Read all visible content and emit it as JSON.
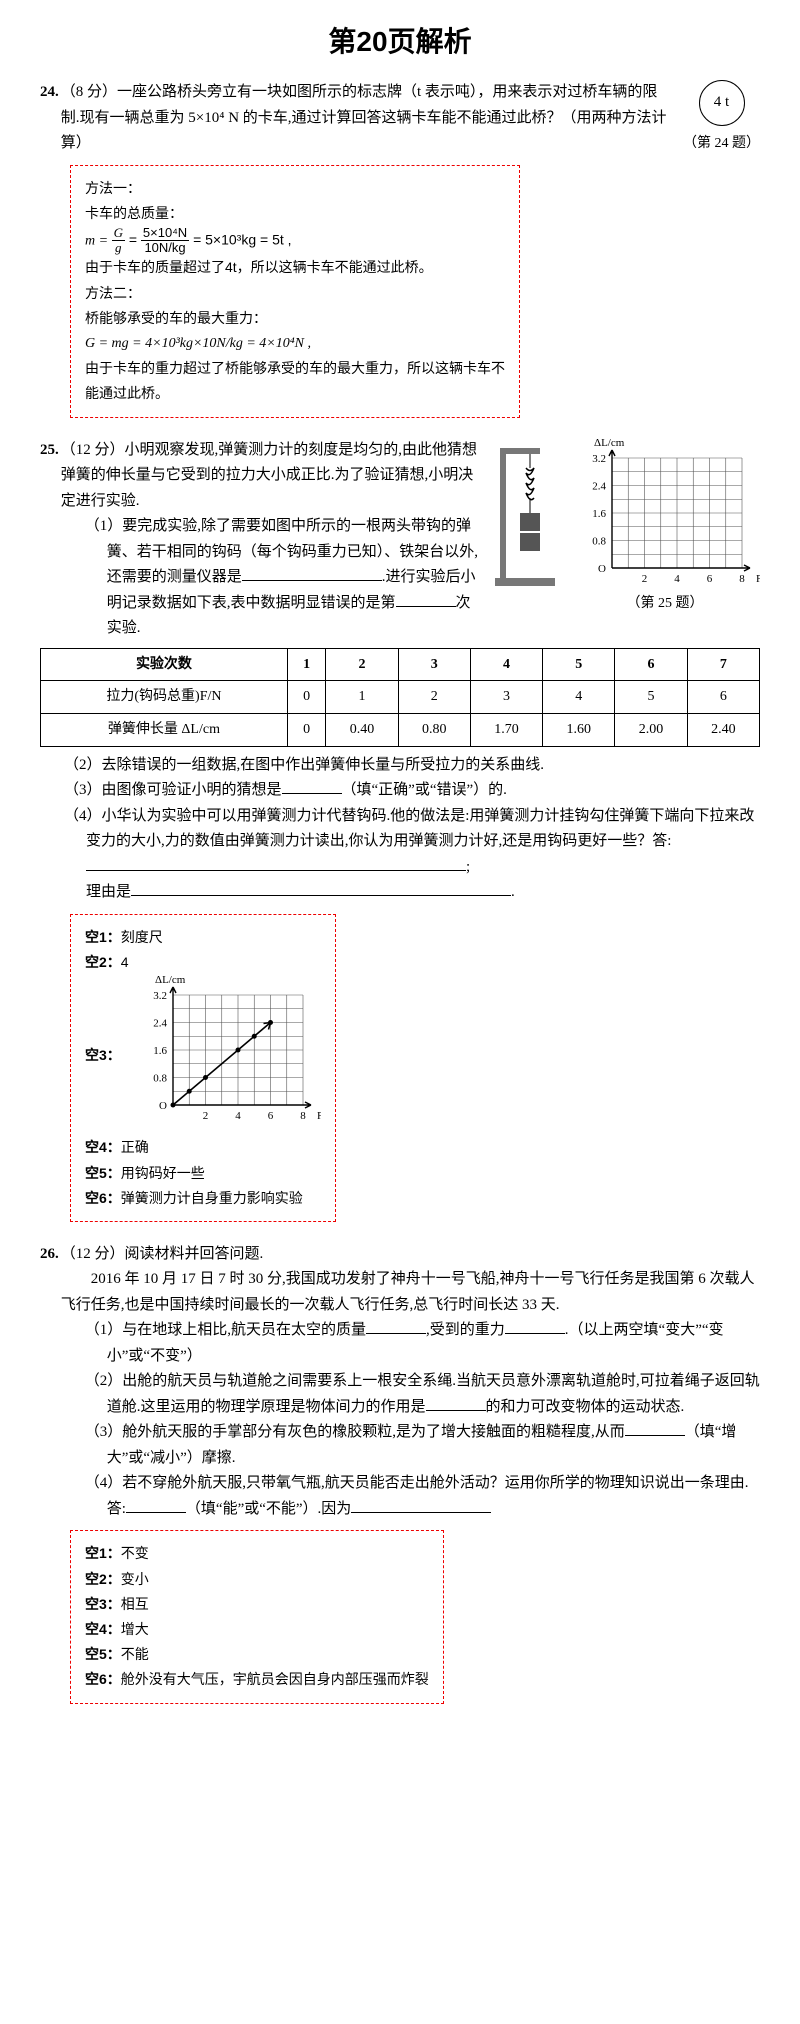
{
  "page_title": "第20页解析",
  "q24": {
    "number": "24.",
    "points": "（8 分）",
    "text": "一座公路桥头旁立有一块如图所示的标志牌（t 表示吨），用来表示对过桥车辆的限制.现有一辆总重为 5×10⁴ N 的卡车,通过计算回答这辆卡车能不能通过此桥？（用两种方法计算）",
    "sign_value": "4 t",
    "fig_caption": "（第 24 题）",
    "answer": {
      "m1_title": "方法一：",
      "m1_l1": "卡车的总质量：",
      "m1_formula_prefix": "m = ",
      "m1_frac_num": "G",
      "m1_frac_den": "g",
      "m1_eq": " = ",
      "m1_frac2_num": "5×10⁴N",
      "m1_frac2_den": "10N/kg",
      "m1_rest": " = 5×10³kg = 5t ,",
      "m1_l3": "由于卡车的质量超过了4t，所以这辆卡车不能通过此桥。",
      "m2_title": "方法二：",
      "m2_l1": "桥能够承受的车的最大重力：",
      "m2_formula": "G = mg = 4×10³kg×10N/kg = 4×10⁴N ,",
      "m2_l3": "由于卡车的重力超过了桥能够承受的车的最大重力，所以这辆卡车不能通过此桥。"
    }
  },
  "q25": {
    "number": "25.",
    "points": "（12 分）",
    "intro": "小明观察发现,弹簧测力计的刻度是均匀的,由此他猜想弹簧的伸长量与它受到的拉力大小成正比.为了验证猜想,小明决定进行实验.",
    "sub1": "（1）要完成实验,除了需要如图中所示的一根两头带钩的弹簧、若干相同的钩码（每个钩码重力已知）、铁架台以外,还需要的测量仪器是",
    "sub1_after": ".进行实验后小明记录数据如下表,表中数据明显错误的是第",
    "sub1_tail": "次实验.",
    "fig_caption": "（第 25 题）",
    "chart": {
      "y_label": "ΔL/cm",
      "x_label": "F/N",
      "x_ticks": [
        "2",
        "4",
        "6",
        "8"
      ],
      "y_ticks": [
        "0.8",
        "1.6",
        "2.4",
        "3.2"
      ],
      "origin": "O",
      "grid_color": "#555",
      "axis_color": "#000",
      "line_color": "#000",
      "bg": "#fff"
    },
    "table": {
      "headers": [
        "实验次数",
        "1",
        "2",
        "3",
        "4",
        "5",
        "6",
        "7"
      ],
      "row1_label": "拉力(钩码总重)F/N",
      "row1": [
        "0",
        "1",
        "2",
        "3",
        "4",
        "5",
        "6"
      ],
      "row2_label": "弹簧伸长量 ΔL/cm",
      "row2": [
        "0",
        "0.40",
        "0.80",
        "1.70",
        "1.60",
        "2.00",
        "2.40"
      ]
    },
    "sub2": "（2）去除错误的一组数据,在图中作出弹簧伸长量与所受拉力的关系曲线.",
    "sub3_a": "（3）由图像可验证小明的猜想是",
    "sub3_b": "（填“正确”或“错误”）的.",
    "sub4_a": "（4）小华认为实验中可以用弹簧测力计代替钩码.他的做法是:用弹簧测力计挂钩勾住弹簧下端向下拉来改变力的大小,力的数值由弹簧测力计读出,你认为用弹簧测力计好,还是用钩码更好一些？答:",
    "sub4_b": "理由是",
    "answers": {
      "a1_label": "空1：",
      "a1": "刻度尺",
      "a2_label": "空2：",
      "a2": "4",
      "a3_label": "空3：",
      "a4_label": "空4：",
      "a4": "正确",
      "a5_label": "空5：",
      "a5": "用钩码好一些",
      "a6_label": "空6：",
      "a6": "弹簧测力计自身重力影响实验"
    }
  },
  "q26": {
    "number": "26.",
    "points": "（12 分）",
    "intro_l1": "阅读材料并回答问题.",
    "para": "　　2016 年 10 月 17 日 7 时 30 分,我国成功发射了神舟十一号飞船,神舟十一号飞行任务是我国第 6 次载人飞行任务,也是中国持续时间最长的一次载人飞行任务,总飞行时间长达 33 天.",
    "sub1_a": "（1）与在地球上相比,航天员在太空的质量",
    "sub1_b": ",受到的重力",
    "sub1_c": ".（以上两空填“变大”“变小”或“不变”）",
    "sub2_a": "（2）出舱的航天员与轨道舱之间需要系上一根安全系绳.当航天员意外漂离轨道舱时,可拉着绳子返回轨道舱.这里运用的物理学原理是物体间力的作用是",
    "sub2_b": "的和力可改变物体的运动状态.",
    "sub3_a": "（3）舱外航天服的手掌部分有灰色的橡胶颗粒,是为了增大接触面的粗糙程度,从而",
    "sub3_b": "（填“增大”或“减小”）摩擦.",
    "sub4_a": "（4）若不穿舱外航天服,只带氧气瓶,航天员能否走出舱外活动？运用你所学的物理知识说出一条理由.答:",
    "sub4_b": "（填“能”或“不能”）.因为",
    "answers": {
      "a1_label": "空1：",
      "a1": "不变",
      "a2_label": "空2：",
      "a2": "变小",
      "a3_label": "空3：",
      "a3": "相互",
      "a4_label": "空4：",
      "a4": "增大",
      "a5_label": "空5：",
      "a5": "不能",
      "a6_label": "空6：",
      "a6": "舱外没有大气压，宇航员会因自身内部压强而炸裂"
    }
  }
}
